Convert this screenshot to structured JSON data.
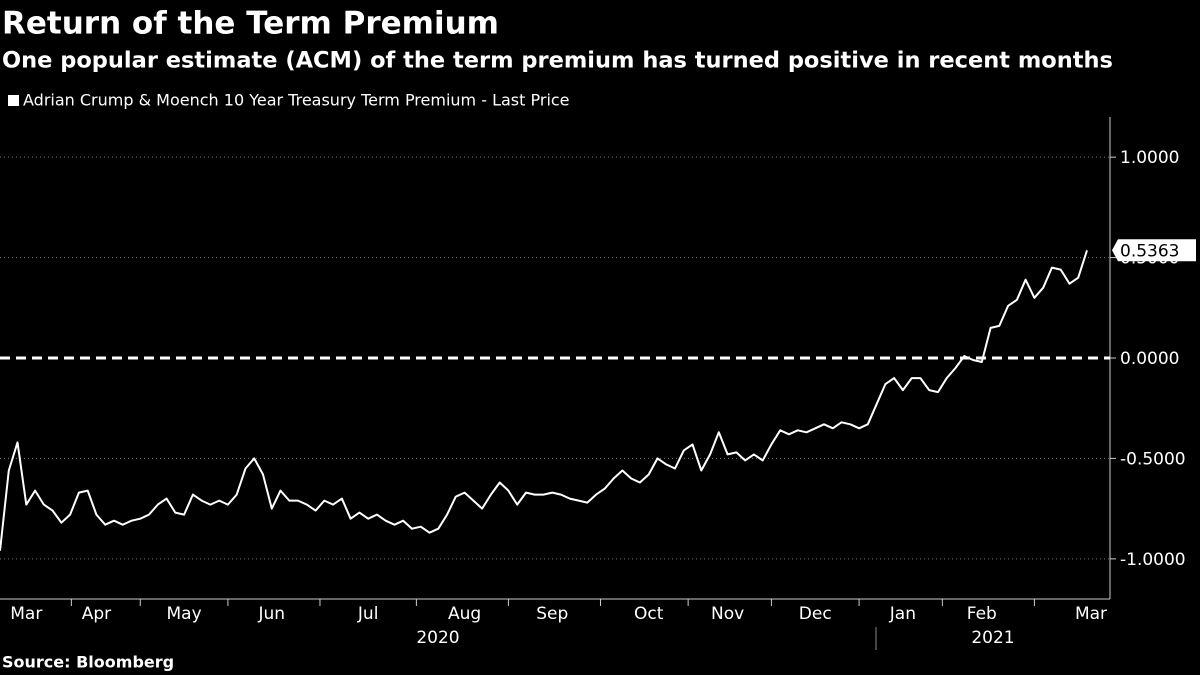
{
  "chart_data": {
    "type": "line",
    "title": "Return of the Term Premium",
    "subtitle": "One popular estimate (ACM) of the term premium has turned positive in recent months",
    "source": "Source: Bloomberg",
    "year_labels": [
      "2020",
      "2021"
    ],
    "categories": [
      null,
      null,
      null,
      "Mar",
      null,
      null,
      null,
      null,
      null,
      null,
      null,
      "Apr",
      null,
      null,
      null,
      null,
      null,
      null,
      null,
      null,
      null,
      "May",
      null,
      null,
      null,
      null,
      null,
      null,
      null,
      null,
      null,
      "Jun",
      null,
      null,
      null,
      null,
      null,
      null,
      null,
      null,
      null,
      null,
      "Jul",
      null,
      null,
      null,
      null,
      null,
      null,
      null,
      null,
      null,
      null,
      "Aug",
      null,
      null,
      null,
      null,
      null,
      null,
      null,
      null,
      null,
      "Sep",
      null,
      null,
      null,
      null,
      null,
      null,
      null,
      null,
      null,
      null,
      "Oct",
      null,
      null,
      null,
      null,
      null,
      null,
      null,
      null,
      "Nov",
      null,
      null,
      null,
      null,
      null,
      null,
      null,
      null,
      null,
      "Dec",
      null,
      null,
      null,
      null,
      null,
      null,
      null,
      null,
      null,
      "Jan",
      null,
      null,
      null,
      null,
      null,
      null,
      null,
      null,
      "Feb",
      null,
      null,
      null,
      null,
      null,
      null,
      null,
      null,
      null,
      null,
      null,
      "Mar"
    ],
    "series": [
      {
        "name": "Adrian Crump & Moench 10 Year Treasury Term Premium - Last Price",
        "color": "#ffffff",
        "values": [
          -0.96,
          -0.56,
          -0.42,
          -0.73,
          -0.66,
          -0.73,
          -0.76,
          -0.82,
          -0.78,
          -0.67,
          -0.66,
          -0.78,
          -0.83,
          -0.81,
          -0.83,
          -0.81,
          -0.8,
          -0.78,
          -0.73,
          -0.7,
          -0.77,
          -0.78,
          -0.68,
          -0.71,
          -0.73,
          -0.71,
          -0.73,
          -0.68,
          -0.55,
          -0.5,
          -0.58,
          -0.75,
          -0.66,
          -0.71,
          -0.71,
          -0.73,
          -0.76,
          -0.71,
          -0.73,
          -0.7,
          -0.8,
          -0.77,
          -0.8,
          -0.78,
          -0.81,
          -0.83,
          -0.81,
          -0.85,
          -0.84,
          -0.87,
          -0.85,
          -0.78,
          -0.69,
          -0.67,
          -0.71,
          -0.75,
          -0.68,
          -0.62,
          -0.66,
          -0.73,
          -0.67,
          -0.68,
          -0.68,
          -0.67,
          -0.68,
          -0.7,
          -0.71,
          -0.72,
          -0.68,
          -0.65,
          -0.6,
          -0.56,
          -0.6,
          -0.62,
          -0.58,
          -0.5,
          -0.53,
          -0.55,
          -0.46,
          -0.43,
          -0.56,
          -0.48,
          -0.37,
          -0.48,
          -0.47,
          -0.51,
          -0.48,
          -0.51,
          -0.43,
          -0.36,
          -0.38,
          -0.36,
          -0.37,
          -0.35,
          -0.33,
          -0.35,
          -0.32,
          -0.33,
          -0.35,
          -0.33,
          -0.23,
          -0.13,
          -0.1,
          -0.16,
          -0.1,
          -0.1,
          -0.16,
          -0.17,
          -0.1,
          -0.05,
          0.01,
          -0.01,
          -0.02,
          0.15,
          0.16,
          0.26,
          0.29,
          0.39,
          0.3,
          0.35,
          0.45,
          0.44,
          0.37,
          0.4,
          0.5363
        ]
      }
    ],
    "ylim": [
      -1.2,
      1.2
    ],
    "yticks": [
      {
        "value": -1,
        "label": "-1.0000"
      },
      {
        "value": -0.5,
        "label": "-0.5000"
      },
      {
        "value": 0,
        "label": "0.0000"
      },
      {
        "value": 0.5,
        "label": "0.5000"
      },
      {
        "value": 1,
        "label": "1.0000"
      }
    ],
    "grid": true,
    "zero_line": true,
    "last_value_label": true
  }
}
